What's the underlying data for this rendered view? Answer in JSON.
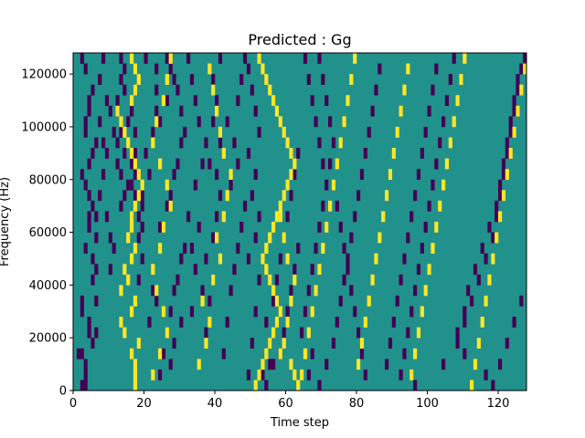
{
  "chart_data": {
    "type": "heatmap",
    "title": "Predicted : Gg",
    "xlabel": "Time step",
    "ylabel": "Frequency (Hz)",
    "xlim": [
      0,
      128
    ],
    "ylim": [
      0,
      128000
    ],
    "xticks": [
      0,
      20,
      40,
      60,
      80,
      100,
      120
    ],
    "yticks": [
      0,
      20000,
      40000,
      60000,
      80000,
      100000,
      120000
    ],
    "rows": 32,
    "cols": 128,
    "row_height_hz": 4000,
    "colors": {
      "-1": "#440154",
      "0": "#21918c",
      "1": "#fde725"
    },
    "background_value": 0,
    "cells_negative": [
      [
        0,
        2
      ],
      [
        0,
        3
      ],
      [
        1,
        3
      ],
      [
        2,
        3
      ],
      [
        3,
        2
      ],
      [
        5,
        4
      ],
      [
        5,
        6
      ],
      [
        6,
        4
      ],
      [
        7,
        2
      ],
      [
        8,
        2
      ],
      [
        8,
        6
      ],
      [
        10,
        5
      ],
      [
        11,
        6
      ],
      [
        12,
        5
      ],
      [
        13,
        3
      ],
      [
        14,
        6
      ],
      [
        15,
        4
      ],
      [
        16,
        4
      ],
      [
        17,
        5
      ],
      [
        18,
        4
      ],
      [
        19,
        3
      ],
      [
        20,
        2
      ],
      [
        21,
        4
      ],
      [
        22,
        5
      ],
      [
        23,
        6
      ],
      [
        24,
        3
      ],
      [
        25,
        3
      ],
      [
        26,
        4
      ],
      [
        27,
        4
      ],
      [
        28,
        5
      ],
      [
        30,
        3
      ],
      [
        31,
        2
      ],
      [
        3,
        1
      ],
      [
        4,
        5
      ],
      [
        16,
        6
      ],
      [
        16,
        9
      ],
      [
        18,
        7
      ],
      [
        20,
        8
      ],
      [
        22,
        9
      ],
      [
        23,
        8
      ],
      [
        25,
        7
      ],
      [
        27,
        9
      ],
      [
        29,
        7
      ],
      [
        31,
        8
      ],
      [
        11,
        10
      ],
      [
        13,
        11
      ],
      [
        14,
        10
      ],
      [
        24,
        11
      ],
      [
        26,
        10
      ],
      [
        17,
        13
      ],
      [
        18,
        14
      ],
      [
        19,
        15
      ],
      [
        20,
        13
      ],
      [
        21,
        12
      ],
      [
        22,
        14
      ],
      [
        23,
        12
      ],
      [
        24,
        13
      ],
      [
        25,
        15
      ],
      [
        26,
        12
      ],
      [
        27,
        12
      ],
      [
        28,
        14
      ],
      [
        29,
        13
      ],
      [
        30,
        14
      ],
      [
        31,
        13
      ],
      [
        16,
        16
      ],
      [
        18,
        17
      ],
      [
        19,
        16
      ],
      [
        20,
        17
      ],
      [
        21,
        16
      ],
      [
        22,
        17
      ],
      [
        24,
        17
      ],
      [
        26,
        16
      ],
      [
        28,
        17
      ],
      [
        30,
        17
      ],
      [
        10,
        18
      ],
      [
        12,
        19
      ],
      [
        14,
        18
      ],
      [
        15,
        19
      ],
      [
        16,
        18
      ],
      [
        17,
        19
      ],
      [
        18,
        19
      ],
      [
        20,
        21
      ],
      [
        22,
        20
      ],
      [
        24,
        22
      ],
      [
        26,
        23
      ],
      [
        28,
        23
      ],
      [
        30,
        23
      ],
      [
        31,
        20
      ],
      [
        6,
        21
      ],
      [
        9,
        22
      ],
      [
        8,
        23
      ],
      [
        1,
        24
      ],
      [
        3,
        25
      ],
      [
        5,
        26
      ],
      [
        7,
        27
      ],
      [
        9,
        28
      ],
      [
        10,
        29
      ],
      [
        12,
        30
      ],
      [
        13,
        31
      ],
      [
        15,
        24
      ],
      [
        17,
        26
      ],
      [
        18,
        27
      ],
      [
        20,
        28
      ],
      [
        21,
        29
      ],
      [
        23,
        30
      ],
      [
        24,
        31
      ],
      [
        26,
        30
      ],
      [
        28,
        29
      ],
      [
        29,
        28
      ],
      [
        30,
        27
      ],
      [
        31,
        26
      ],
      [
        27,
        26
      ],
      [
        25,
        24
      ],
      [
        2,
        27
      ],
      [
        4,
        28
      ],
      [
        6,
        30
      ],
      [
        11,
        34
      ],
      [
        13,
        33
      ],
      [
        15,
        35
      ],
      [
        16,
        32
      ],
      [
        19,
        34
      ],
      [
        21,
        36
      ],
      [
        23,
        37
      ],
      [
        25,
        35
      ],
      [
        27,
        34
      ],
      [
        29,
        33
      ],
      [
        31,
        32
      ],
      [
        7,
        33
      ],
      [
        9,
        36
      ],
      [
        5,
        37
      ],
      [
        8,
        38
      ],
      [
        10,
        39
      ],
      [
        12,
        37
      ],
      [
        14,
        39
      ],
      [
        16,
        40
      ],
      [
        18,
        41
      ],
      [
        20,
        40
      ],
      [
        21,
        38
      ],
      [
        23,
        41
      ],
      [
        25,
        39
      ],
      [
        27,
        40
      ],
      [
        29,
        39
      ],
      [
        31,
        41
      ],
      [
        3,
        42
      ],
      [
        6,
        43
      ],
      [
        9,
        44
      ],
      [
        11,
        45
      ],
      [
        13,
        46
      ],
      [
        15,
        47
      ],
      [
        17,
        48
      ],
      [
        19,
        44
      ],
      [
        21,
        46
      ],
      [
        23,
        45
      ],
      [
        25,
        43
      ],
      [
        27,
        46
      ],
      [
        29,
        47
      ],
      [
        31,
        48
      ],
      [
        1,
        49
      ],
      [
        4,
        50
      ],
      [
        7,
        51
      ],
      [
        10,
        52
      ],
      [
        12,
        49
      ],
      [
        14,
        51
      ],
      [
        16,
        52
      ],
      [
        18,
        50
      ],
      [
        20,
        51
      ],
      [
        22,
        49
      ],
      [
        24,
        52
      ],
      [
        26,
        51
      ],
      [
        28,
        50
      ],
      [
        30,
        49
      ],
      [
        2,
        56
      ],
      [
        4,
        55
      ],
      [
        6,
        54
      ],
      [
        8,
        56
      ],
      [
        10,
        57
      ],
      [
        12,
        58
      ],
      [
        14,
        59
      ],
      [
        16,
        60
      ],
      [
        18,
        61
      ],
      [
        20,
        62
      ],
      [
        22,
        63
      ],
      [
        6,
        57
      ],
      [
        5,
        59
      ],
      [
        7,
        60
      ],
      [
        9,
        61
      ],
      [
        11,
        62
      ],
      [
        13,
        63
      ],
      [
        1,
        53
      ],
      [
        0,
        54
      ],
      [
        2,
        55
      ],
      [
        3,
        58
      ],
      [
        5,
        64
      ],
      [
        7,
        65
      ],
      [
        9,
        66
      ],
      [
        11,
        67
      ],
      [
        13,
        68
      ],
      [
        15,
        69
      ],
      [
        17,
        70
      ],
      [
        19,
        71
      ],
      [
        21,
        72
      ],
      [
        23,
        73
      ],
      [
        25,
        72
      ],
      [
        27,
        71
      ],
      [
        29,
        70
      ],
      [
        31,
        69
      ],
      [
        1,
        66
      ],
      [
        3,
        67
      ],
      [
        0,
        69
      ],
      [
        2,
        71
      ],
      [
        4,
        73
      ],
      [
        6,
        74
      ],
      [
        8,
        75
      ],
      [
        10,
        76
      ],
      [
        12,
        77
      ],
      [
        14,
        78
      ],
      [
        16,
        79
      ],
      [
        18,
        80
      ],
      [
        20,
        81
      ],
      [
        22,
        82
      ],
      [
        24,
        83
      ],
      [
        26,
        84
      ],
      [
        28,
        85
      ],
      [
        30,
        86
      ],
      [
        1,
        82
      ],
      [
        3,
        81
      ],
      [
        5,
        80
      ],
      [
        7,
        79
      ],
      [
        9,
        78
      ],
      [
        11,
        77
      ],
      [
        13,
        76
      ],
      [
        15,
        75
      ],
      [
        17,
        74
      ],
      [
        19,
        73
      ],
      [
        21,
        70
      ],
      [
        23,
        69
      ],
      [
        25,
        68
      ],
      [
        27,
        67
      ],
      [
        29,
        66
      ],
      [
        31,
        65
      ],
      [
        2,
        88
      ],
      [
        4,
        89
      ],
      [
        6,
        90
      ],
      [
        8,
        91
      ],
      [
        10,
        92
      ],
      [
        12,
        93
      ],
      [
        14,
        94
      ],
      [
        16,
        95
      ],
      [
        18,
        96
      ],
      [
        20,
        97
      ],
      [
        22,
        98
      ],
      [
        24,
        99
      ],
      [
        26,
        100
      ],
      [
        28,
        101
      ],
      [
        30,
        102
      ],
      [
        1,
        92
      ],
      [
        3,
        93
      ],
      [
        5,
        94
      ],
      [
        7,
        95
      ],
      [
        9,
        96
      ],
      [
        11,
        97
      ],
      [
        13,
        98
      ],
      [
        15,
        99
      ],
      [
        17,
        100
      ],
      [
        19,
        101
      ],
      [
        21,
        102
      ],
      [
        23,
        103
      ],
      [
        25,
        104
      ],
      [
        27,
        105
      ],
      [
        29,
        106
      ],
      [
        31,
        107
      ],
      [
        0,
        96
      ],
      [
        2,
        104
      ],
      [
        4,
        108
      ],
      [
        6,
        110
      ],
      [
        8,
        112
      ],
      [
        10,
        114
      ],
      [
        12,
        116
      ],
      [
        14,
        118
      ],
      [
        16,
        119
      ],
      [
        18,
        120
      ],
      [
        20,
        121
      ],
      [
        22,
        122
      ],
      [
        24,
        123
      ],
      [
        26,
        124
      ],
      [
        28,
        125
      ],
      [
        30,
        126
      ],
      [
        5,
        108
      ],
      [
        7,
        110
      ],
      [
        9,
        111
      ],
      [
        11,
        113
      ],
      [
        13,
        115
      ],
      [
        15,
        117
      ],
      [
        17,
        119
      ],
      [
        19,
        120
      ],
      [
        21,
        121
      ],
      [
        23,
        122
      ],
      [
        25,
        123
      ],
      [
        27,
        124
      ],
      [
        29,
        125
      ],
      [
        31,
        127
      ],
      [
        3,
        110
      ],
      [
        1,
        116
      ],
      [
        0,
        118
      ],
      [
        2,
        120
      ],
      [
        4,
        122
      ],
      [
        6,
        124
      ],
      [
        8,
        126
      ]
    ],
    "cells_positive": [
      [
        0,
        17
      ],
      [
        1,
        17
      ],
      [
        2,
        17
      ],
      [
        3,
        16
      ],
      [
        4,
        18
      ],
      [
        5,
        14
      ],
      [
        6,
        13
      ],
      [
        7,
        16
      ],
      [
        8,
        17
      ],
      [
        9,
        13
      ],
      [
        10,
        15
      ],
      [
        11,
        14
      ],
      [
        12,
        16
      ],
      [
        13,
        17
      ],
      [
        14,
        15
      ],
      [
        15,
        16
      ],
      [
        16,
        16
      ],
      [
        17,
        17
      ],
      [
        18,
        18
      ],
      [
        19,
        19
      ],
      [
        20,
        18
      ],
      [
        21,
        17
      ],
      [
        22,
        16
      ],
      [
        23,
        15
      ],
      [
        24,
        14
      ],
      [
        25,
        13
      ],
      [
        26,
        12
      ],
      [
        27,
        16
      ],
      [
        28,
        17
      ],
      [
        29,
        18
      ],
      [
        30,
        17
      ],
      [
        31,
        16
      ],
      [
        1,
        22
      ],
      [
        3,
        24
      ],
      [
        5,
        26
      ],
      [
        7,
        25
      ],
      [
        9,
        23
      ],
      [
        11,
        22
      ],
      [
        13,
        24
      ],
      [
        15,
        25
      ],
      [
        17,
        27
      ],
      [
        19,
        26
      ],
      [
        21,
        24
      ],
      [
        23,
        22
      ],
      [
        25,
        23
      ],
      [
        27,
        25
      ],
      [
        29,
        26
      ],
      [
        31,
        27
      ],
      [
        2,
        35
      ],
      [
        4,
        37
      ],
      [
        6,
        38
      ],
      [
        8,
        36
      ],
      [
        10,
        39
      ],
      [
        12,
        41
      ],
      [
        14,
        40
      ],
      [
        16,
        42
      ],
      [
        18,
        43
      ],
      [
        20,
        44
      ],
      [
        22,
        42
      ],
      [
        24,
        41
      ],
      [
        26,
        40
      ],
      [
        28,
        39
      ],
      [
        30,
        38
      ],
      [
        0,
        51
      ],
      [
        1,
        52
      ],
      [
        2,
        53
      ],
      [
        3,
        54
      ],
      [
        4,
        55
      ],
      [
        5,
        56
      ],
      [
        6,
        57
      ],
      [
        7,
        58
      ],
      [
        8,
        57
      ],
      [
        9,
        56
      ],
      [
        10,
        55
      ],
      [
        11,
        54
      ],
      [
        12,
        53
      ],
      [
        13,
        54
      ],
      [
        14,
        55
      ],
      [
        15,
        56
      ],
      [
        16,
        57
      ],
      [
        17,
        58
      ],
      [
        18,
        59
      ],
      [
        19,
        60
      ],
      [
        20,
        61
      ],
      [
        21,
        62
      ],
      [
        22,
        61
      ],
      [
        23,
        60
      ],
      [
        24,
        59
      ],
      [
        25,
        58
      ],
      [
        26,
        57
      ],
      [
        27,
        56
      ],
      [
        28,
        55
      ],
      [
        29,
        54
      ],
      [
        30,
        53
      ],
      [
        31,
        52
      ],
      [
        3,
        58
      ],
      [
        4,
        59
      ],
      [
        6,
        60
      ],
      [
        8,
        61
      ],
      [
        10,
        62
      ],
      [
        12,
        60
      ],
      [
        14,
        59
      ],
      [
        16,
        58
      ],
      [
        2,
        61
      ],
      [
        1,
        62
      ],
      [
        0,
        63
      ],
      [
        1,
        64
      ],
      [
        3,
        65
      ],
      [
        5,
        66
      ],
      [
        7,
        67
      ],
      [
        9,
        68
      ],
      [
        11,
        69
      ],
      [
        13,
        70
      ],
      [
        15,
        71
      ],
      [
        17,
        72
      ],
      [
        19,
        73
      ],
      [
        21,
        74
      ],
      [
        23,
        75
      ],
      [
        25,
        76
      ],
      [
        27,
        77
      ],
      [
        29,
        78
      ],
      [
        31,
        79
      ],
      [
        2,
        80
      ],
      [
        4,
        81
      ],
      [
        6,
        82
      ],
      [
        8,
        83
      ],
      [
        10,
        84
      ],
      [
        12,
        85
      ],
      [
        14,
        86
      ],
      [
        16,
        87
      ],
      [
        18,
        88
      ],
      [
        20,
        89
      ],
      [
        22,
        90
      ],
      [
        24,
        91
      ],
      [
        26,
        92
      ],
      [
        28,
        93
      ],
      [
        30,
        94
      ],
      [
        1,
        95
      ],
      [
        3,
        96
      ],
      [
        5,
        97
      ],
      [
        7,
        98
      ],
      [
        9,
        99
      ],
      [
        11,
        100
      ],
      [
        13,
        101
      ],
      [
        15,
        102
      ],
      [
        17,
        103
      ],
      [
        19,
        104
      ],
      [
        21,
        105
      ],
      [
        23,
        106
      ],
      [
        25,
        107
      ],
      [
        27,
        108
      ],
      [
        29,
        109
      ],
      [
        31,
        110
      ],
      [
        0,
        112
      ],
      [
        2,
        113
      ],
      [
        4,
        114
      ],
      [
        6,
        115
      ],
      [
        8,
        116
      ],
      [
        10,
        117
      ],
      [
        12,
        118
      ],
      [
        14,
        119
      ],
      [
        16,
        120
      ],
      [
        18,
        121
      ],
      [
        20,
        122
      ],
      [
        22,
        123
      ],
      [
        24,
        124
      ],
      [
        26,
        125
      ],
      [
        28,
        126
      ],
      [
        30,
        127
      ]
    ]
  }
}
